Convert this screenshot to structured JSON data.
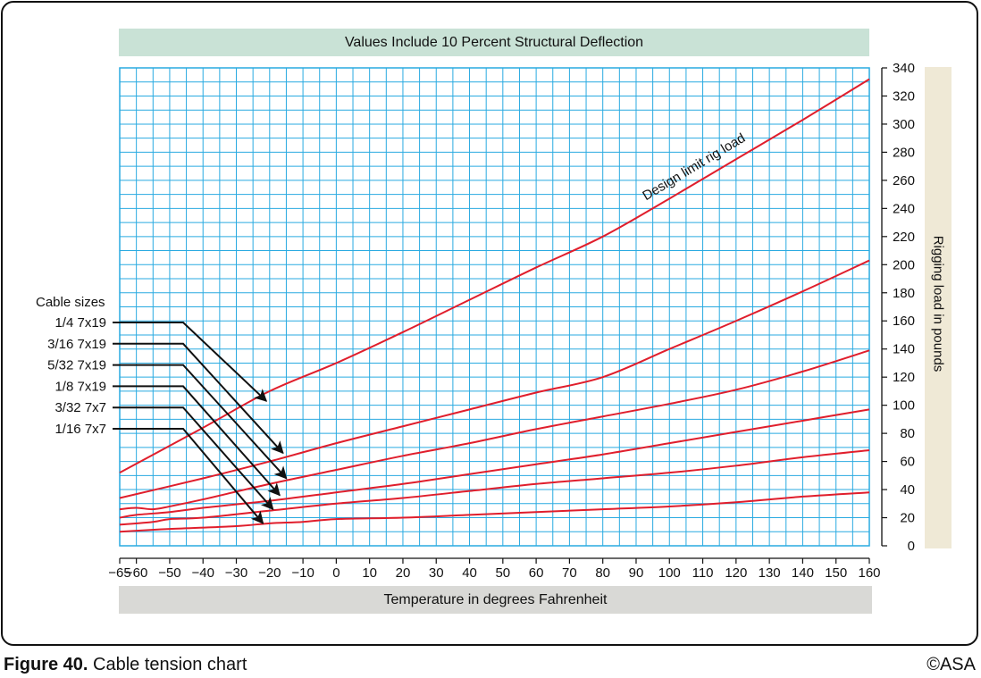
{
  "caption": {
    "label": "Figure 40.",
    "text": "Cable tension chart"
  },
  "copyright": "©ASA",
  "colors": {
    "grid": "#29aae1",
    "curve": "#e01e2c",
    "top_banner": "#c9e2d6",
    "bottom_banner": "#d9d9d6",
    "right_banner": "#efe9d6"
  },
  "chart_data": {
    "type": "line",
    "title": "Values Include 10 Percent Structural Deflection",
    "xlabel": "Temperature in degrees Fahrenheit",
    "ylabel": "Rigging load in pounds",
    "xlim": [
      -65,
      160
    ],
    "ylim": [
      0,
      340
    ],
    "x_ticks": [
      -65,
      -60,
      -50,
      -40,
      -30,
      -20,
      -10,
      0,
      10,
      20,
      30,
      40,
      50,
      60,
      70,
      80,
      90,
      100,
      110,
      120,
      130,
      140,
      150,
      160
    ],
    "x_tick_labels": [
      "−65",
      "−60",
      "−50",
      "−40",
      "−30",
      "−20",
      "−10",
      "0",
      "10",
      "20",
      "30",
      "40",
      "50",
      "60",
      "70",
      "80",
      "90",
      "100",
      "110",
      "120",
      "130",
      "140",
      "150",
      "160"
    ],
    "y_ticks": [
      0,
      20,
      40,
      60,
      80,
      100,
      120,
      140,
      160,
      180,
      200,
      220,
      240,
      260,
      280,
      300,
      320,
      340
    ],
    "grid": true,
    "curve_annotation": "Design limit rig load",
    "legend_title": "Cable sizes",
    "series": [
      {
        "name": "1/4 7x19",
        "x": [
          -65,
          -40,
          -20,
          0,
          20,
          40,
          60,
          80,
          100,
          120,
          140,
          160
        ],
        "values": [
          52,
          84,
          110,
          130,
          152,
          175,
          198,
          220,
          247,
          275,
          303,
          332
        ]
      },
      {
        "name": "3/16 7x19",
        "x": [
          -65,
          -40,
          -20,
          0,
          20,
          40,
          60,
          80,
          100,
          120,
          140,
          160
        ],
        "values": [
          34,
          48,
          60,
          73,
          85,
          97,
          109,
          120,
          140,
          160,
          181,
          203
        ]
      },
      {
        "name": "5/32 7x19",
        "x": [
          -65,
          -60,
          -55,
          -50,
          -40,
          -20,
          0,
          20,
          40,
          60,
          80,
          100,
          120,
          140,
          160
        ],
        "values": [
          26,
          27,
          26,
          28,
          33,
          44,
          54,
          64,
          73,
          83,
          92,
          101,
          111,
          124,
          139
        ]
      },
      {
        "name": "1/8 7x19",
        "x": [
          -65,
          -60,
          -50,
          -40,
          -20,
          0,
          20,
          40,
          60,
          80,
          100,
          120,
          140,
          160
        ],
        "values": [
          20,
          22,
          24,
          27,
          32,
          38,
          44,
          51,
          58,
          65,
          73,
          81,
          89,
          97
        ]
      },
      {
        "name": "3/32 7x7",
        "x": [
          -65,
          -55,
          -50,
          -40,
          -20,
          0,
          20,
          40,
          60,
          80,
          100,
          120,
          140,
          160
        ],
        "values": [
          15,
          17,
          19,
          20,
          25,
          30,
          34,
          39,
          44,
          48,
          52,
          57,
          63,
          68
        ]
      },
      {
        "name": "1/16 7x7",
        "x": [
          -65,
          -50,
          -30,
          -20,
          -10,
          0,
          20,
          40,
          60,
          80,
          100,
          120,
          140,
          160
        ],
        "values": [
          10,
          12,
          14,
          16,
          17,
          19,
          20,
          22,
          24,
          26,
          28,
          31,
          35,
          38
        ]
      }
    ],
    "legend_arrows": [
      {
        "series": "1/4 7x19",
        "target_x": -21,
        "target_y": 103
      },
      {
        "series": "3/16 7x19",
        "target_x": -16,
        "target_y": 66
      },
      {
        "series": "5/32 7x19",
        "target_x": -15,
        "target_y": 48
      },
      {
        "series": "1/8 7x19",
        "target_x": -17,
        "target_y": 36
      },
      {
        "series": "3/32 7x7",
        "target_x": -19,
        "target_y": 26
      },
      {
        "series": "1/16 7x7",
        "target_x": -22,
        "target_y": 16
      }
    ]
  }
}
